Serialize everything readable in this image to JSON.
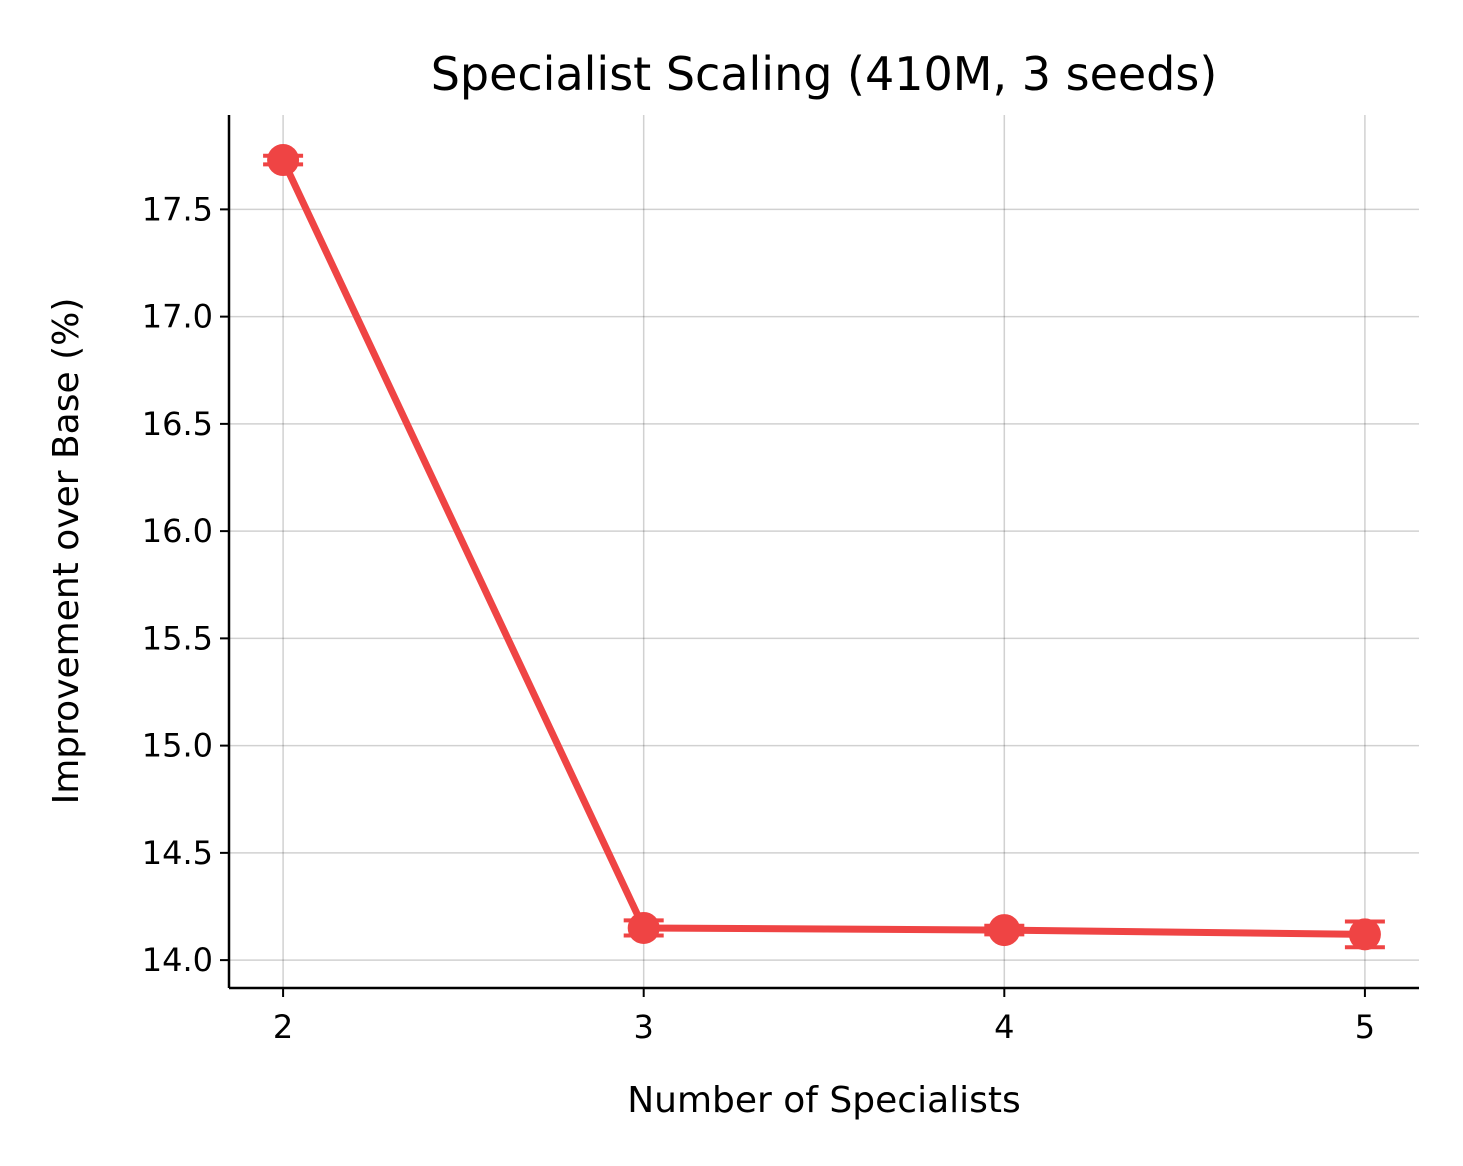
{
  "chart_data": {
    "type": "line",
    "title": "Specialist Scaling (410M, 3 seeds)",
    "xlabel": "Number of Specialists",
    "ylabel": "Improvement over Base (%)",
    "x": [
      2,
      3,
      4,
      5
    ],
    "x_ticks": [
      "2",
      "3",
      "4",
      "5"
    ],
    "y_ticks": [
      "14.0",
      "14.5",
      "15.0",
      "15.5",
      "16.0",
      "16.5",
      "17.0",
      "17.5"
    ],
    "y_tick_values": [
      14.0,
      14.5,
      15.0,
      15.5,
      16.0,
      16.5,
      17.0,
      17.5
    ],
    "xlim": [
      1.85,
      5.15
    ],
    "ylim": [
      13.87,
      17.94
    ],
    "grid": true,
    "series": [
      {
        "values": [
          17.73,
          14.15,
          14.14,
          14.12
        ],
        "errors": [
          0.02,
          0.035,
          0.02,
          0.06
        ],
        "color": "#ef4444"
      }
    ]
  }
}
